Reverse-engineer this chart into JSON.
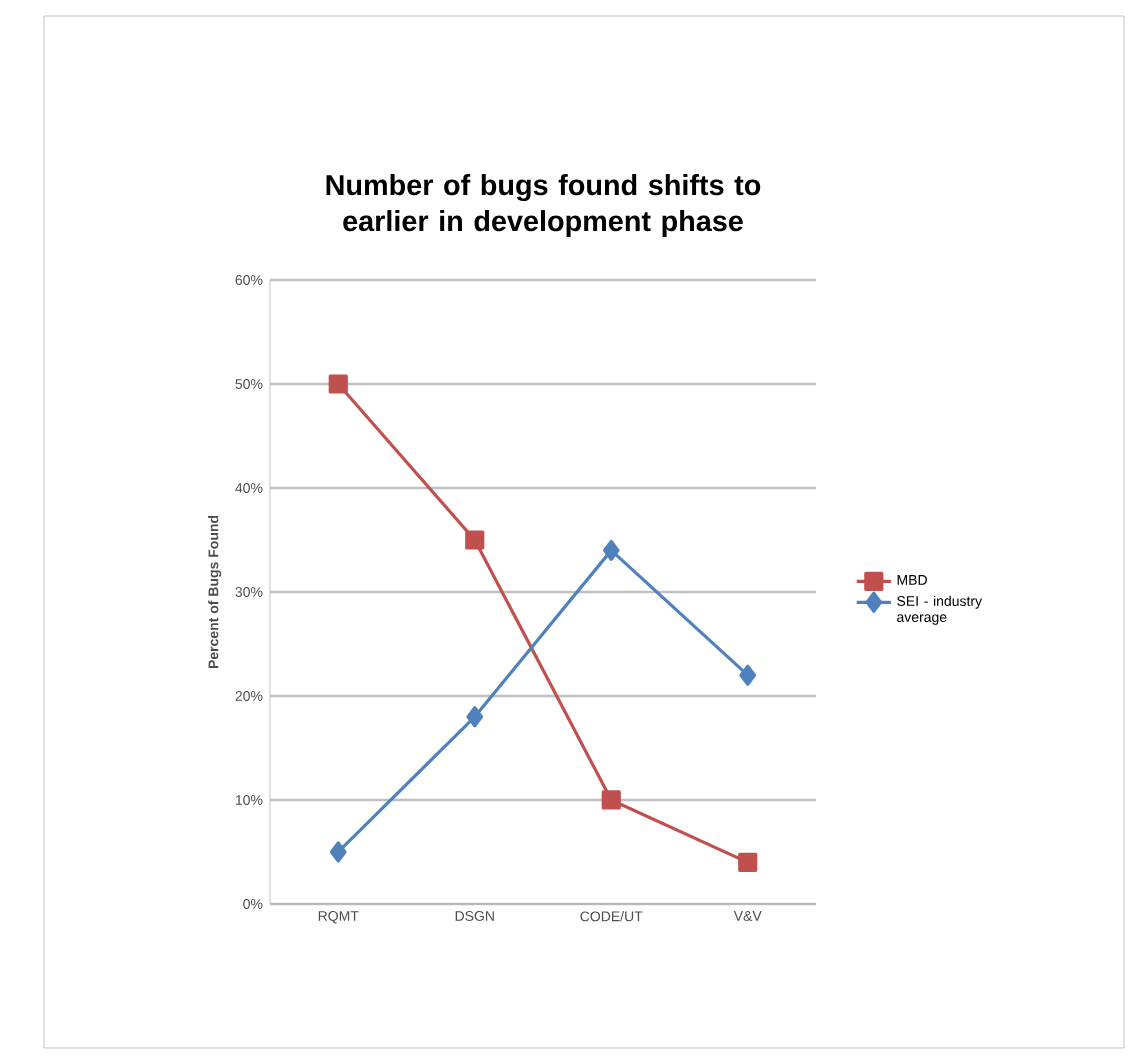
{
  "chart_data": {
    "type": "line",
    "title": "Number of bugs found shifts to earlier in development phase",
    "ylabel": "Percent of Bugs Found",
    "categories": [
      "RQMT",
      "DSGN",
      "CODE/UT",
      "V&V"
    ],
    "series": [
      {
        "name": "MBD",
        "color": "#c0504d",
        "marker": "square",
        "values": [
          50,
          35,
          10,
          4
        ]
      },
      {
        "name": "SEI - industry average",
        "color": "#4f81bd",
        "marker": "diamond",
        "values": [
          5,
          18,
          34,
          22
        ]
      }
    ],
    "ylim": [
      0,
      60
    ],
    "yticks": [
      {
        "value": 0,
        "label": "0%"
      },
      {
        "value": 10,
        "label": "10%"
      },
      {
        "value": 20,
        "label": "20%"
      },
      {
        "value": 30,
        "label": "30%"
      },
      {
        "value": 40,
        "label": "40%"
      },
      {
        "value": 50,
        "label": "50%"
      },
      {
        "value": 60,
        "label": "60%"
      }
    ],
    "grid": "y",
    "legend": "right"
  }
}
